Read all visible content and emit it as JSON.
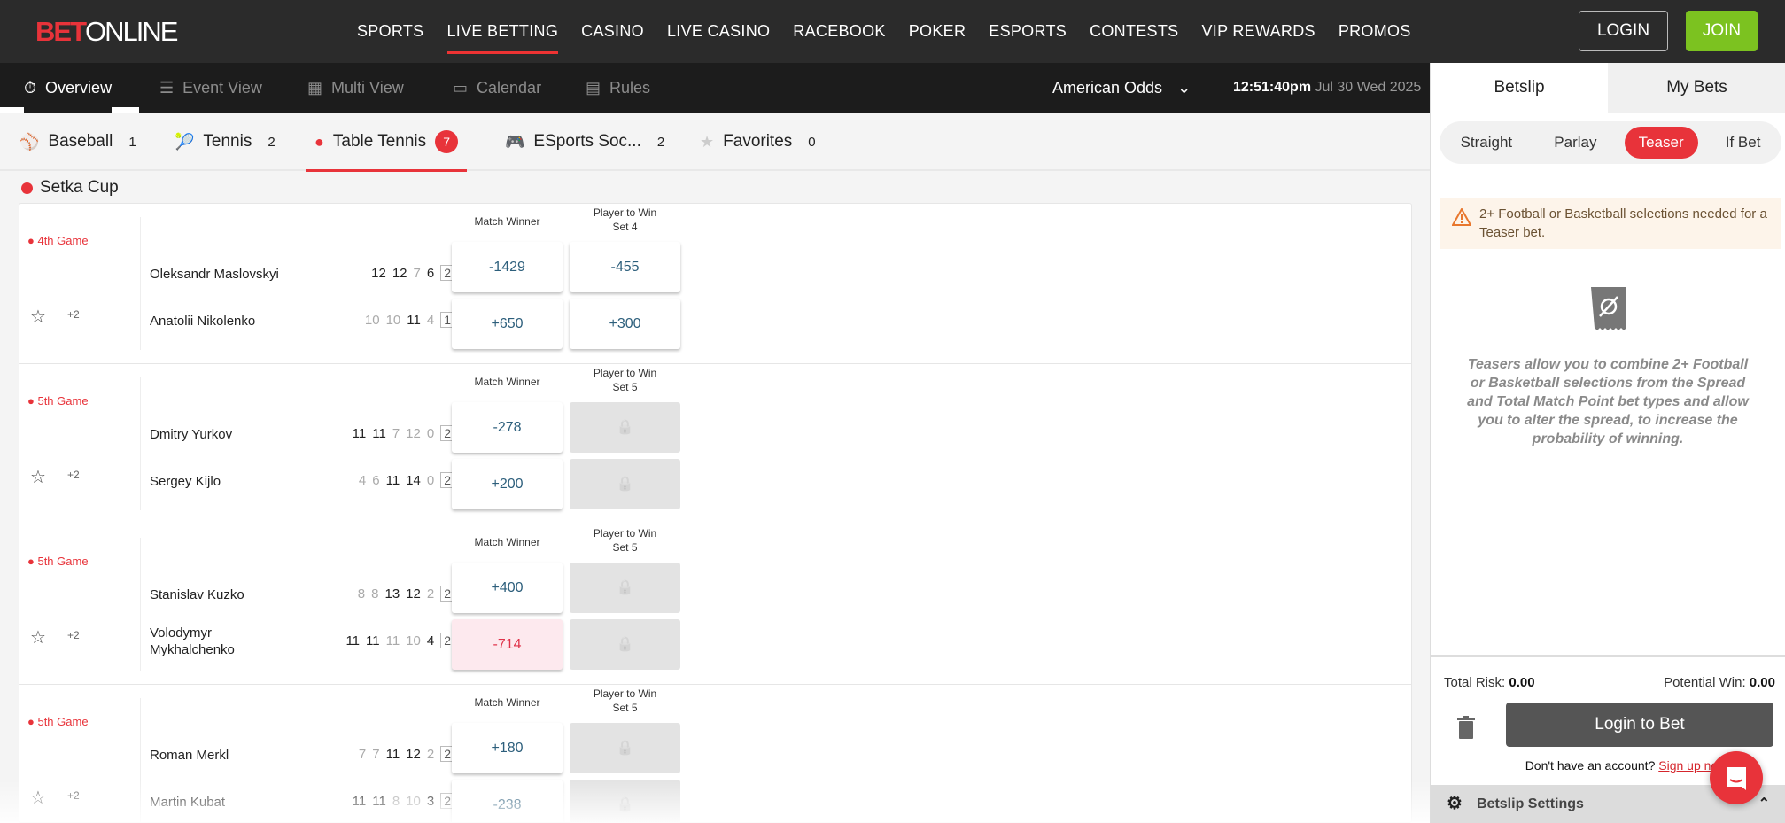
{
  "header": {
    "logo_bet": "BET",
    "logo_online": "ONLINE",
    "nav": [
      "SPORTS",
      "LIVE BETTING",
      "CASINO",
      "LIVE CASINO",
      "RACEBOOK",
      "POKER",
      "ESPORTS",
      "CONTESTS",
      "VIP REWARDS",
      "PROMOS"
    ],
    "active_nav": "LIVE BETTING",
    "login": "LOGIN",
    "join": "JOIN",
    "join_color": "#7cc220",
    "accent": "#e8333a"
  },
  "subnav": {
    "items": [
      {
        "label": "Overview",
        "icon": "stopwatch-icon"
      },
      {
        "label": "Event View",
        "icon": "list-icon"
      },
      {
        "label": "Multi View",
        "icon": "grid-icon"
      },
      {
        "label": "Calendar",
        "icon": "calendar-icon"
      },
      {
        "label": "Rules",
        "icon": "rules-icon"
      }
    ],
    "odds_format": "American Odds",
    "time": "12:51:40pm",
    "date": "Jul 30 Wed 2025"
  },
  "sport_tabs": [
    {
      "label": "Baseball",
      "count": "1",
      "icon": "baseball-icon"
    },
    {
      "label": "Tennis",
      "count": "2",
      "icon": "tennis-icon"
    },
    {
      "label": "Table Tennis",
      "count": "7",
      "icon": "table-tennis-icon",
      "active": true
    },
    {
      "label": "ESports Soc...",
      "count": "2",
      "icon": "gamepad-icon"
    },
    {
      "label": "Favorites",
      "count": "0",
      "icon": "star-icon"
    }
  ],
  "league": "Setka Cup",
  "matches": [
    {
      "status": "4th Game",
      "more": "+2",
      "market1": "Match Winner",
      "market2": "Player to Win Set 4",
      "players": [
        {
          "name": "Oleksandr Maslovskyi",
          "scores": [
            "12",
            "12",
            "7",
            "6"
          ],
          "sets": "2",
          "odds1": "-1429",
          "odds2": "-455"
        },
        {
          "name": "Anatolii Nikolenko",
          "scores": [
            "10",
            "10",
            "11",
            "4"
          ],
          "sets": "1",
          "odds1": "+650",
          "odds2": "+300"
        }
      ]
    },
    {
      "status": "5th Game",
      "more": "+2",
      "market1": "Match Winner",
      "market2": "Player to Win Set 5",
      "players": [
        {
          "name": "Dmitry Yurkov",
          "scores": [
            "11",
            "11",
            "7",
            "12",
            "0"
          ],
          "sets": "2",
          "odds1": "-278",
          "odds2": null
        },
        {
          "name": "Sergey Kijlo",
          "scores": [
            "4",
            "6",
            "11",
            "14",
            "0"
          ],
          "sets": "2",
          "odds1": "+200",
          "odds2": null
        }
      ]
    },
    {
      "status": "5th Game",
      "more": "+2",
      "market1": "Match Winner",
      "market2": "Player to Win Set 5",
      "players": [
        {
          "name": "Stanislav Kuzko",
          "scores": [
            "8",
            "8",
            "13",
            "12",
            "2"
          ],
          "sets": "2",
          "odds1": "+400",
          "odds2": null
        },
        {
          "name": "Volodymyr Mykhalchenko",
          "scores": [
            "11",
            "11",
            "11",
            "10",
            "4"
          ],
          "sets": "2",
          "odds1": "-714",
          "odds2": null,
          "highlight": true
        }
      ]
    },
    {
      "status": "5th Game",
      "more": "+2",
      "market1": "Match Winner",
      "market2": "Player to Win Set 5",
      "players": [
        {
          "name": "Roman Merkl",
          "scores": [
            "7",
            "7",
            "11",
            "12",
            "2"
          ],
          "sets": "2",
          "odds1": "+180",
          "odds2": null
        },
        {
          "name": "Martin Kubat",
          "scores": [
            "11",
            "11",
            "8",
            "10",
            "3"
          ],
          "sets": "2",
          "odds1": "-238",
          "odds2": null
        }
      ]
    }
  ],
  "betslip": {
    "tabs": [
      "Betslip",
      "My Bets"
    ],
    "types": [
      "Straight",
      "Parlay",
      "Teaser",
      "If Bet"
    ],
    "active_type": "Teaser",
    "warning": "2+ Football or Basketball selections needed for a Teaser bet.",
    "info": "Teasers allow you to combine 2+ Football or Basketball selections from the Spread and Total Match Point bet types and allow you to alter the spread, to increase the probability of winning.",
    "total_risk_label": "Total Risk:",
    "total_risk": "0.00",
    "potential_win_label": "Potential Win:",
    "potential_win": "0.00",
    "login_to_bet": "Login to Bet",
    "no_account": "Don't have an account?",
    "sign_up": "Sign up now",
    "settings": "Betslip Settings"
  }
}
